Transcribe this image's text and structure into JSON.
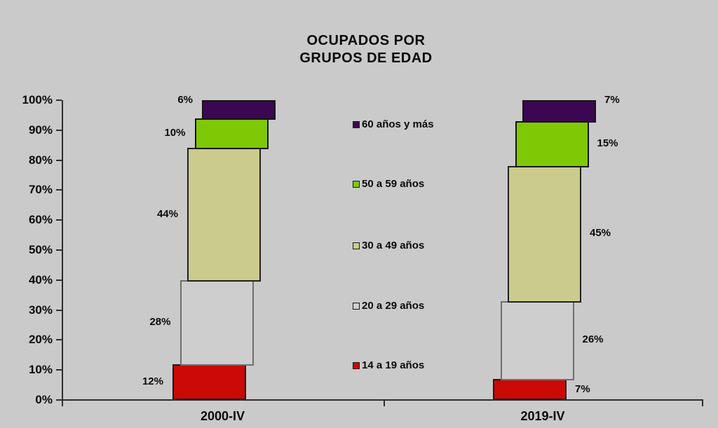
{
  "title": "OCUPADOS POR\nGRUPOS DE EDAD",
  "colors": {
    "background": "#cacaca",
    "axis": "#2e2e2e",
    "text": "#0a0a0a"
  },
  "chart_data": {
    "type": "bar",
    "stacked": true,
    "orientation": "vertical",
    "unit": "%",
    "title": "OCUPADOS POR GRUPOS DE EDAD",
    "categories": [
      "2000-IV",
      "2019-IV"
    ],
    "series": [
      {
        "name": "14 a 19 años",
        "color": "#cb0906",
        "border": "#1a1a1a",
        "values": [
          12,
          7
        ]
      },
      {
        "name": "20 a 29 años",
        "color": "#cecece",
        "border": "#6e6e6e",
        "values": [
          28,
          26
        ]
      },
      {
        "name": "30 a 49 años",
        "color": "#cbcb8d",
        "border": "#202020",
        "values": [
          44,
          45
        ]
      },
      {
        "name": "50 a 59 años",
        "color": "#7fc805",
        "border": "#141414",
        "values": [
          10,
          15
        ]
      },
      {
        "name": "60 años y más",
        "color": "#3b0752",
        "border": "#141414",
        "values": [
          6,
          7
        ]
      }
    ],
    "data_labels": [
      [
        "12%",
        "28%",
        "44%",
        "10%",
        "6%"
      ],
      [
        "7%",
        "26%",
        "45%",
        "15%",
        "7%"
      ]
    ],
    "y_axis": {
      "min": 0,
      "max": 100,
      "tick_step": 10,
      "tick_labels": [
        "0%",
        "10%",
        "20%",
        "30%",
        "40%",
        "50%",
        "60%",
        "70%",
        "80%",
        "90%",
        "100%"
      ]
    },
    "legend": {
      "position": "center",
      "items_top_to_bottom": [
        "60 años y más",
        "50 a 59 años",
        "30 a 49 años",
        "20 a 29 años",
        "14 a 19 años"
      ]
    },
    "grid": false,
    "style": "staggered-stacked"
  }
}
